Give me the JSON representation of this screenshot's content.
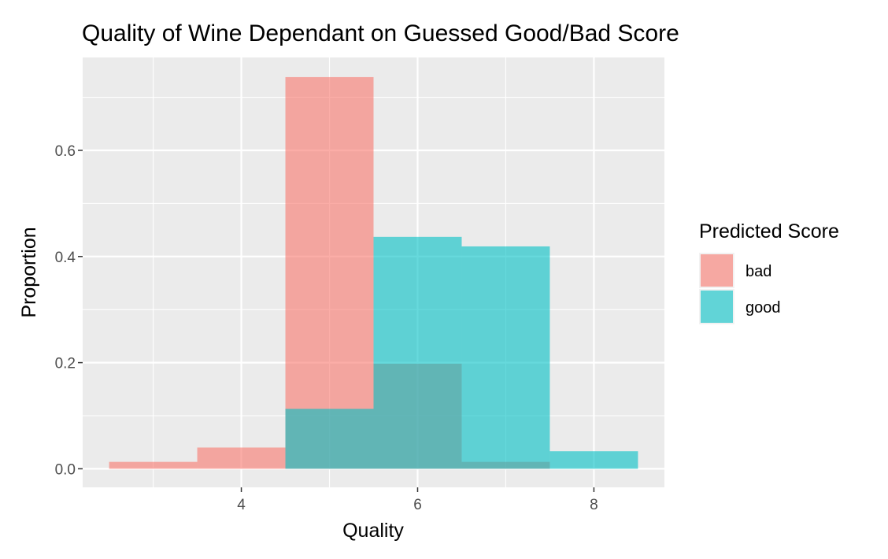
{
  "chart_data": {
    "type": "histogram",
    "title": "Quality of Wine Dependant on Guessed Good/Bad Score",
    "xlabel": "Quality",
    "ylabel": "Proportion",
    "xlim": [
      2.2,
      8.8
    ],
    "ylim": [
      -0.035,
      0.775
    ],
    "x_ticks": [
      4,
      6,
      8
    ],
    "y_ticks": [
      0.0,
      0.2,
      0.4,
      0.6
    ],
    "y_tick_labels": [
      "0.0",
      "0.2",
      "0.4",
      "0.6"
    ],
    "bins": [
      3,
      4,
      5,
      6,
      7,
      8
    ],
    "bin_width": 1,
    "series": [
      {
        "name": "bad",
        "color": "#F8766D",
        "values": [
          0.013,
          0.04,
          0.738,
          0.198,
          0.013,
          0.0
        ]
      },
      {
        "name": "good",
        "color": "#00BFC4",
        "values": [
          0.0,
          0.0,
          0.113,
          0.437,
          0.419,
          0.033
        ]
      }
    ],
    "legend": {
      "title": "Predicted Score",
      "position": "right"
    },
    "panel_background": "#EBEBEB",
    "grid_color": "#FFFFFF"
  }
}
